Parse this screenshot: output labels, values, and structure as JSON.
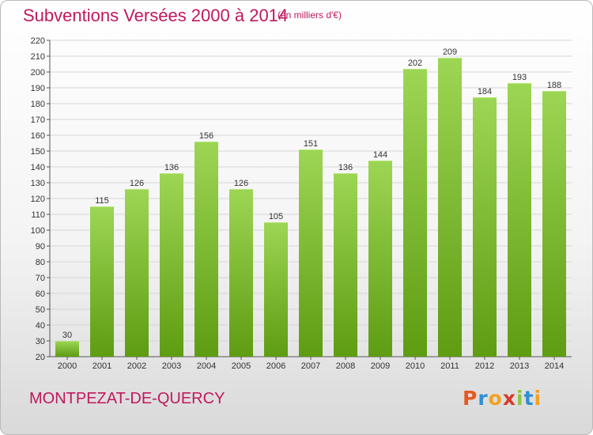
{
  "title": "Subventions Versées 2000 à 2014",
  "subtitle": "(en milliers d'€)",
  "commune": "MONTPEZAT-DE-QUERCY",
  "logo": {
    "text": "Proxiti",
    "letters": [
      {
        "char": "P",
        "color": "#e8571f"
      },
      {
        "char": "r",
        "color": "#2f8fd4"
      },
      {
        "char": "o",
        "color": "#f2a11d"
      },
      {
        "char": "x",
        "color": "#d63a2a"
      },
      {
        "char": "i",
        "color": "#8cc63f"
      },
      {
        "char": "t",
        "color": "#2f8fd4"
      },
      {
        "char": "i",
        "color": "#f2a11d"
      }
    ]
  },
  "colors": {
    "title": "#c0185e",
    "bar_top": "#9dd654",
    "bar_bottom": "#5e9c12",
    "grid": "#d6d6d6"
  },
  "chart_data": {
    "type": "bar",
    "title": "Subventions Versées 2000 à 2014",
    "subtitle": "(en milliers d'€)",
    "xlabel": "",
    "ylabel": "",
    "categories": [
      "2000",
      "2001",
      "2002",
      "2003",
      "2004",
      "2005",
      "2006",
      "2007",
      "2008",
      "2009",
      "2010",
      "2011",
      "2012",
      "2013",
      "2014"
    ],
    "values": [
      30,
      115,
      126,
      136,
      156,
      126,
      105,
      151,
      136,
      144,
      202,
      209,
      184,
      193,
      188
    ],
    "ylim": [
      20,
      220
    ],
    "yticks": [
      20,
      30,
      40,
      50,
      60,
      70,
      80,
      90,
      100,
      110,
      120,
      130,
      140,
      150,
      160,
      170,
      180,
      190,
      200,
      210,
      220
    ],
    "grid": true,
    "legend": "none"
  }
}
